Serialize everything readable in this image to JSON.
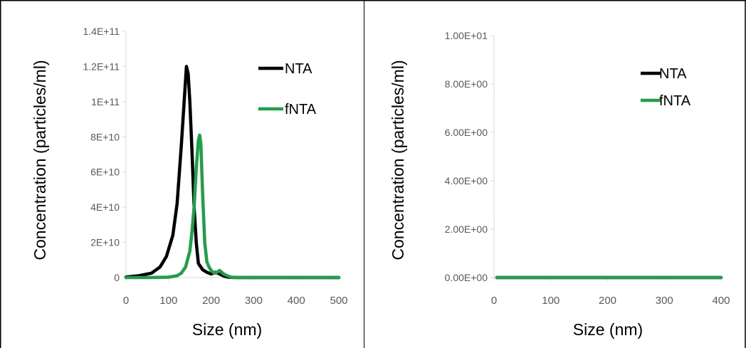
{
  "chart_data": [
    {
      "type": "line",
      "xlabel": "Size (nm)",
      "ylabel": "Concentration (particles/ml)",
      "xlim": [
        0,
        500
      ],
      "ylim": [
        0,
        140000000000
      ],
      "x_ticks": [
        "0",
        "100",
        "200",
        "300",
        "400",
        "500"
      ],
      "y_ticks": [
        "0",
        "2E+10",
        "4E+10",
        "6E+10",
        "8E+10",
        "1E+11",
        "1.2E+11",
        "1.4E+11"
      ],
      "legend_position": "top-right",
      "series": [
        {
          "name": "NTA",
          "color": "#000000",
          "x": [
            0,
            30,
            60,
            80,
            95,
            110,
            120,
            130,
            138,
            142,
            146,
            150,
            155,
            160,
            165,
            170,
            180,
            190,
            200,
            210,
            220,
            230,
            240,
            260,
            300,
            400,
            500
          ],
          "y": [
            300000000,
            1000000000,
            2500000000,
            6000000000,
            12000000000,
            24000000000,
            42000000000,
            75000000000,
            105000000000,
            120000000000,
            116000000000,
            100000000000,
            72000000000,
            40000000000,
            20000000000,
            8000000000,
            4500000000,
            3000000000,
            2000000000,
            3000000000,
            2000000000,
            800000000,
            200000000,
            0,
            0,
            0,
            0
          ]
        },
        {
          "name": "fNTA",
          "color": "#1fa048",
          "x": [
            0,
            50,
            100,
            120,
            130,
            140,
            150,
            155,
            160,
            165,
            170,
            173,
            176,
            180,
            185,
            190,
            195,
            200,
            205,
            210,
            220,
            230,
            240,
            250,
            300,
            400,
            500
          ],
          "y": [
            0,
            0,
            200000000,
            1000000000,
            2500000000,
            6000000000,
            15000000000,
            26000000000,
            40000000000,
            62000000000,
            78000000000,
            81000000000,
            76000000000,
            48000000000,
            20000000000,
            9000000000,
            6000000000,
            4000000000,
            3000000000,
            2500000000,
            4000000000,
            2000000000,
            800000000,
            0,
            0,
            0,
            0
          ]
        }
      ]
    },
    {
      "type": "line",
      "xlabel": "Size (nm)",
      "ylabel": "Concentration (particles/ml)",
      "xlim": [
        0,
        400
      ],
      "ylim": [
        0,
        10
      ],
      "x_ticks": [
        "0",
        "100",
        "200",
        "300",
        "400"
      ],
      "y_ticks": [
        "0.00E+00",
        "2.00E+00",
        "4.00E+00",
        "6.00E+00",
        "8.00E+00",
        "1.00E+01"
      ],
      "legend_position": "top-right",
      "series": [
        {
          "name": "NTA",
          "color": "#000000",
          "x": [
            5,
            400
          ],
          "y": [
            0,
            0
          ]
        },
        {
          "name": "fNTA",
          "color": "#1fa048",
          "x": [
            5,
            400
          ],
          "y": [
            0,
            0
          ]
        }
      ]
    }
  ]
}
